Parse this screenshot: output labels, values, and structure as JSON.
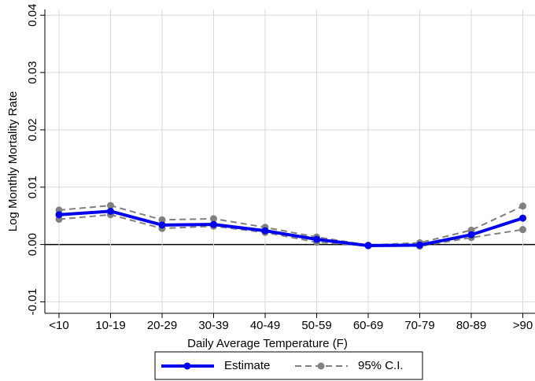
{
  "chart_data": {
    "type": "line",
    "x_label": "Daily Average Temperature (F)",
    "y_label": "Log Monthly Mortality Rate",
    "categories": [
      "<10",
      "10-19",
      "20-29",
      "30-39",
      "40-49",
      "50-59",
      "60-69",
      "70-79",
      "80-89",
      ">90"
    ],
    "series": [
      {
        "name": "Estimate",
        "color": "#0000ee",
        "values": [
          0.0052,
          0.0058,
          0.0034,
          0.0035,
          0.0024,
          0.0009,
          -0.0002,
          -0.0001,
          0.0017,
          0.0046
        ]
      },
      {
        "name": "95% C.I.",
        "color": "#808080",
        "values": [
          0.006,
          0.0068,
          0.0043,
          0.0045,
          0.003,
          0.0013,
          -0.0001,
          0.0003,
          0.0025,
          0.0067
        ],
        "lower": [
          0.0044,
          0.0052,
          0.0028,
          0.0032,
          0.0021,
          0.0004,
          -0.0002,
          -0.0003,
          0.0012,
          0.0026
        ]
      }
    ],
    "ylim": [
      -0.012,
      0.041
    ],
    "yticks": [
      -0.01,
      {
        "value": 0,
        "label": "0.00"
      },
      0.01,
      0.02,
      0.03,
      0.04
    ],
    "grid": true,
    "legend": "bottom"
  }
}
